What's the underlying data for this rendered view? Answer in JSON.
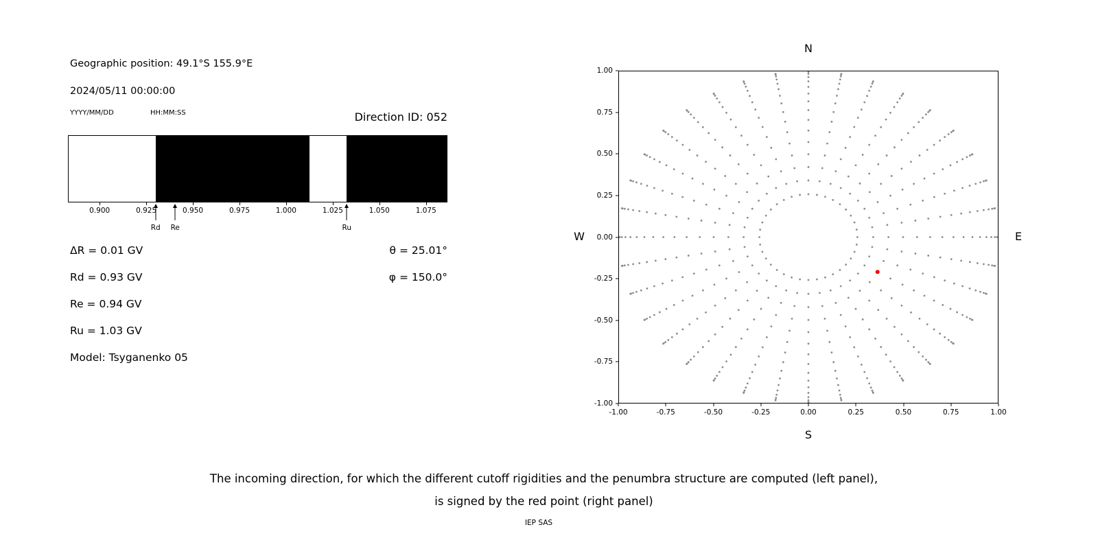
{
  "left_panel": {
    "geo_position": "Geographic position: 49.1°S 155.9°E",
    "datetime": "2024/05/11 00:00:00",
    "date_format_label": "YYYY/MM/DD",
    "time_format_label": "HH:MM:SS",
    "direction_id": "Direction ID: 052",
    "delta_r": "ΔR = 0.01 GV",
    "rd": "Rd = 0.93 GV",
    "re": "Re = 0.94 GV",
    "ru": "Ru = 1.03 GV",
    "model": "Model: Tsyganenko 05",
    "theta": "θ = 25.01°",
    "phi": "φ = 150.0°"
  },
  "right_panel": {
    "north": "N",
    "south": "S",
    "east": "E",
    "west": "W"
  },
  "caption": {
    "line1": "The incoming direction, for which the different cutoff rigidities and the penumbra structure are computed (left panel),",
    "line2": "is signed by the red point (right panel)"
  },
  "credit": "IEP SAS",
  "chart_data": [
    {
      "type": "bar",
      "name": "penumbra-structure",
      "x_range": [
        0.883,
        1.0865
      ],
      "x_ticks": [
        0.9,
        0.925,
        0.95,
        0.975,
        1.0,
        1.025,
        1.05,
        1.075
      ],
      "x_tick_labels": [
        "0.900",
        "0.925",
        "0.950",
        "0.975",
        "1.000",
        "1.025",
        "1.050",
        "1.075"
      ],
      "black_spans": [
        [
          0.93,
          1.0125
        ],
        [
          1.0325,
          1.0865
        ]
      ],
      "markers": [
        {
          "label": "Rd",
          "value": 0.93
        },
        {
          "label": "Re",
          "value": 0.9405
        },
        {
          "label": "Ru",
          "value": 1.0325
        }
      ],
      "bar_color": "#000000",
      "bg_color": "#ffffff"
    },
    {
      "type": "scatter",
      "name": "incoming-directions",
      "xlim": [
        -1,
        1
      ],
      "ylim": [
        -1,
        1
      ],
      "x_tick_labels": [
        "-1.00",
        "-0.75",
        "-0.50",
        "-0.25",
        "0.00",
        "0.25",
        "0.50",
        "0.75",
        "1.00"
      ],
      "y_tick_labels": [
        "1.00",
        "0.75",
        "0.50",
        "0.25",
        "0.00",
        "-0.25",
        "-0.50",
        "-0.75",
        "-1.00"
      ],
      "grid_points": {
        "azimuth_start_deg": 0,
        "azimuth_step_deg": 10,
        "azimuth_count": 36,
        "zenith_start_deg": 15,
        "zenith_step_deg": 5,
        "zenith_end_deg": 90,
        "projection": "r = sin(zenith)",
        "color": "#8c8c8c",
        "dot_radius_px": 1.4
      },
      "red_point": {
        "x": 0.365,
        "y": -0.21,
        "color": "#ff0000",
        "radius_px": 3
      }
    }
  ]
}
